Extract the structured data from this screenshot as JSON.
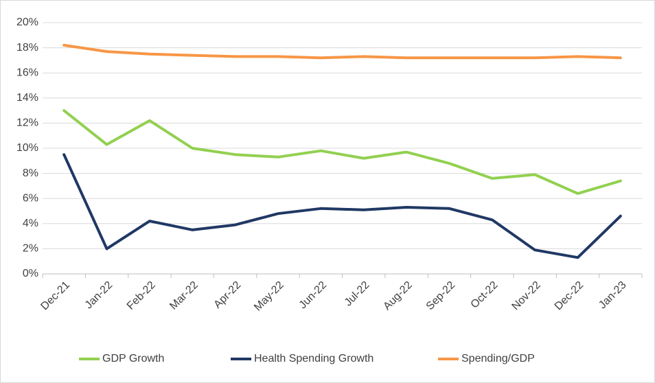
{
  "chart_data": {
    "type": "line",
    "categories": [
      "Dec-21",
      "Jan-22",
      "Feb-22",
      "Mar-22",
      "Apr-22",
      "May-22",
      "Jun-22",
      "Jul-22",
      "Aug-22",
      "Sep-22",
      "Oct-22",
      "Nov-22",
      "Dec-22",
      "Jan-23"
    ],
    "series": [
      {
        "name": "GDP Growth",
        "color": "#92d050",
        "values": [
          13.0,
          10.3,
          12.2,
          10.0,
          9.5,
          9.3,
          9.8,
          9.2,
          9.7,
          8.8,
          7.6,
          7.9,
          6.4,
          7.4
        ]
      },
      {
        "name": "Health Spending Growth",
        "color": "#203864",
        "values": [
          9.5,
          2.0,
          4.2,
          3.5,
          3.9,
          4.8,
          5.2,
          5.1,
          5.3,
          5.2,
          4.3,
          1.9,
          1.3,
          4.6
        ]
      },
      {
        "name": "Spending/GDP",
        "color": "#f79646",
        "values": [
          18.2,
          17.7,
          17.5,
          17.4,
          17.3,
          17.3,
          17.2,
          17.3,
          17.2,
          17.2,
          17.2,
          17.2,
          17.3,
          17.2
        ]
      }
    ],
    "ylim": [
      0,
      20
    ],
    "yticks": [
      {
        "value": 0,
        "label": "0%"
      },
      {
        "value": 2,
        "label": "2%"
      },
      {
        "value": 4,
        "label": "4%"
      },
      {
        "value": 6,
        "label": "6%"
      },
      {
        "value": 8,
        "label": "8%"
      },
      {
        "value": 10,
        "label": "10%"
      },
      {
        "value": 12,
        "label": "12%"
      },
      {
        "value": 14,
        "label": "14%"
      },
      {
        "value": 16,
        "label": "16%"
      },
      {
        "value": 18,
        "label": "18%"
      },
      {
        "value": 20,
        "label": "20%"
      }
    ],
    "grid": true,
    "legend": "bottom"
  }
}
